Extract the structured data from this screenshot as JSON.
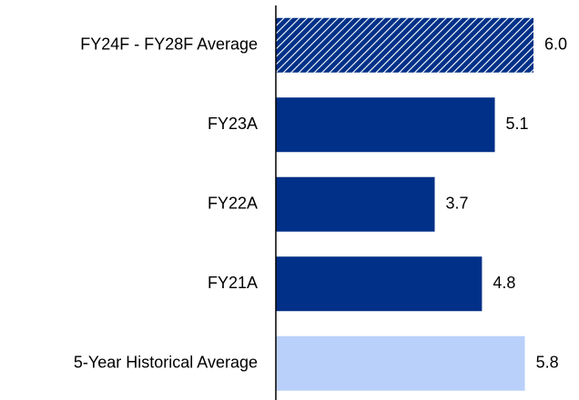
{
  "chart_data": {
    "type": "barh",
    "categories": [
      "FY24F - FY28F Average",
      "FY23A",
      "FY22A",
      "FY21A",
      "5-Year Historical Average"
    ],
    "values": [
      6.0,
      5.1,
      3.7,
      4.8,
      5.8
    ],
    "value_labels": [
      "6.0",
      "5.1",
      "3.7",
      "4.8",
      "5.8"
    ],
    "colors": [
      "#003087",
      "#003087",
      "#003087",
      "#003087",
      "#b9d0fa"
    ],
    "hatched": [
      true,
      false,
      false,
      false,
      false
    ]
  }
}
